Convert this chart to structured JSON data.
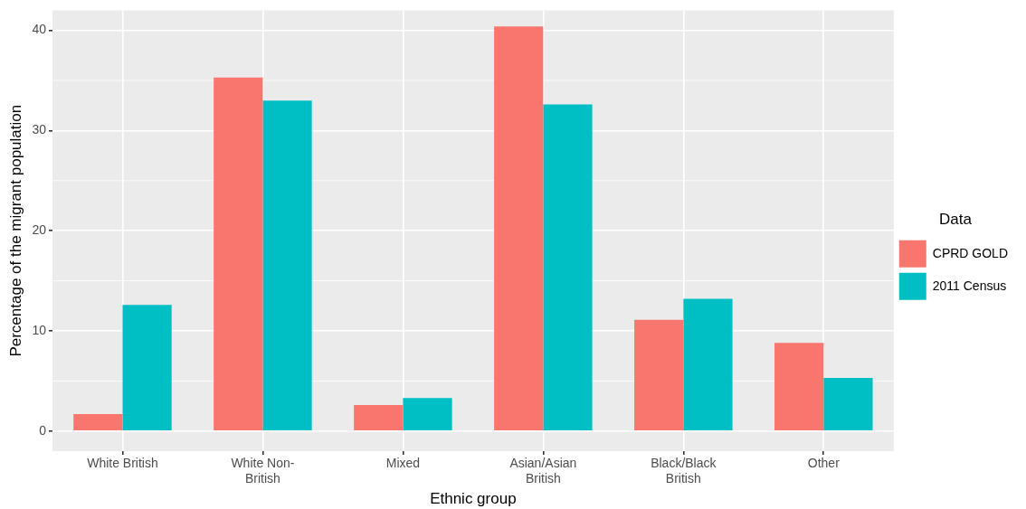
{
  "chart_data": {
    "type": "bar",
    "xlabel": "Ethnic group",
    "ylabel": "Percentage of the migrant population",
    "legend_title": "Data",
    "categories": [
      "White British",
      "White Non-British",
      "Mixed",
      "Asian/Asian British",
      "Black/Black British",
      "Other"
    ],
    "series": [
      {
        "name": "CPRD GOLD",
        "color": "#f8766d",
        "values": [
          1.7,
          35.3,
          2.6,
          40.4,
          11.1,
          8.8
        ]
      },
      {
        "name": "2011 Census",
        "color": "#00bfc4",
        "values": [
          12.6,
          33.0,
          3.3,
          32.6,
          13.2,
          5.3
        ]
      }
    ],
    "ylim": [
      -2,
      42
    ],
    "yticks": [
      0,
      10,
      20,
      30,
      40
    ],
    "grid": true,
    "legend": "right"
  }
}
